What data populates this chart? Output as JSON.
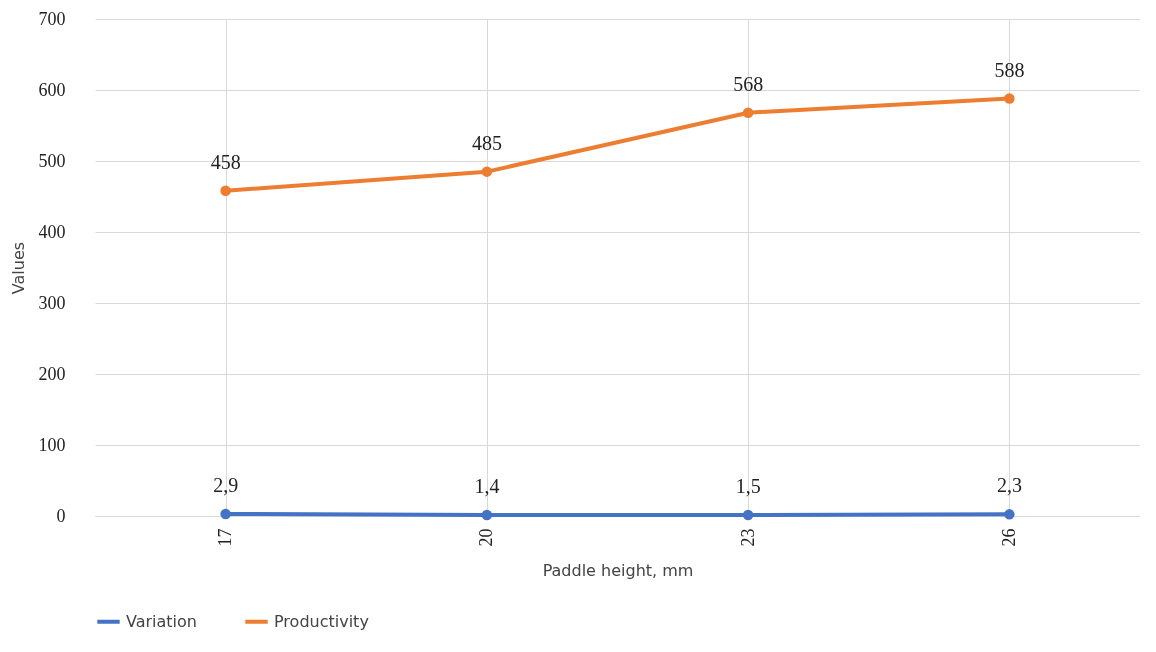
{
  "chart_data": {
    "type": "line",
    "xlabel": "Paddle height, mm",
    "ylabel": "Values",
    "categories": [
      "17",
      "20",
      "23",
      "26"
    ],
    "ylim": [
      0,
      700
    ],
    "yticks": [
      0,
      100,
      200,
      300,
      400,
      500,
      600,
      700
    ],
    "grid": true,
    "legend": "bottom",
    "marker": "circle",
    "line_style": "solid",
    "series": [
      {
        "name": "Variation",
        "color": "#4472c4",
        "values": [
          2.9,
          1.4,
          1.5,
          2.3
        ],
        "value_labels": [
          "2,9",
          "1,4",
          "1,5",
          "2,3"
        ]
      },
      {
        "name": "Productivity",
        "color": "#ed7d31",
        "values": [
          458,
          485,
          568,
          588
        ],
        "value_labels": [
          "458",
          "485",
          "568",
          "588"
        ]
      }
    ]
  }
}
